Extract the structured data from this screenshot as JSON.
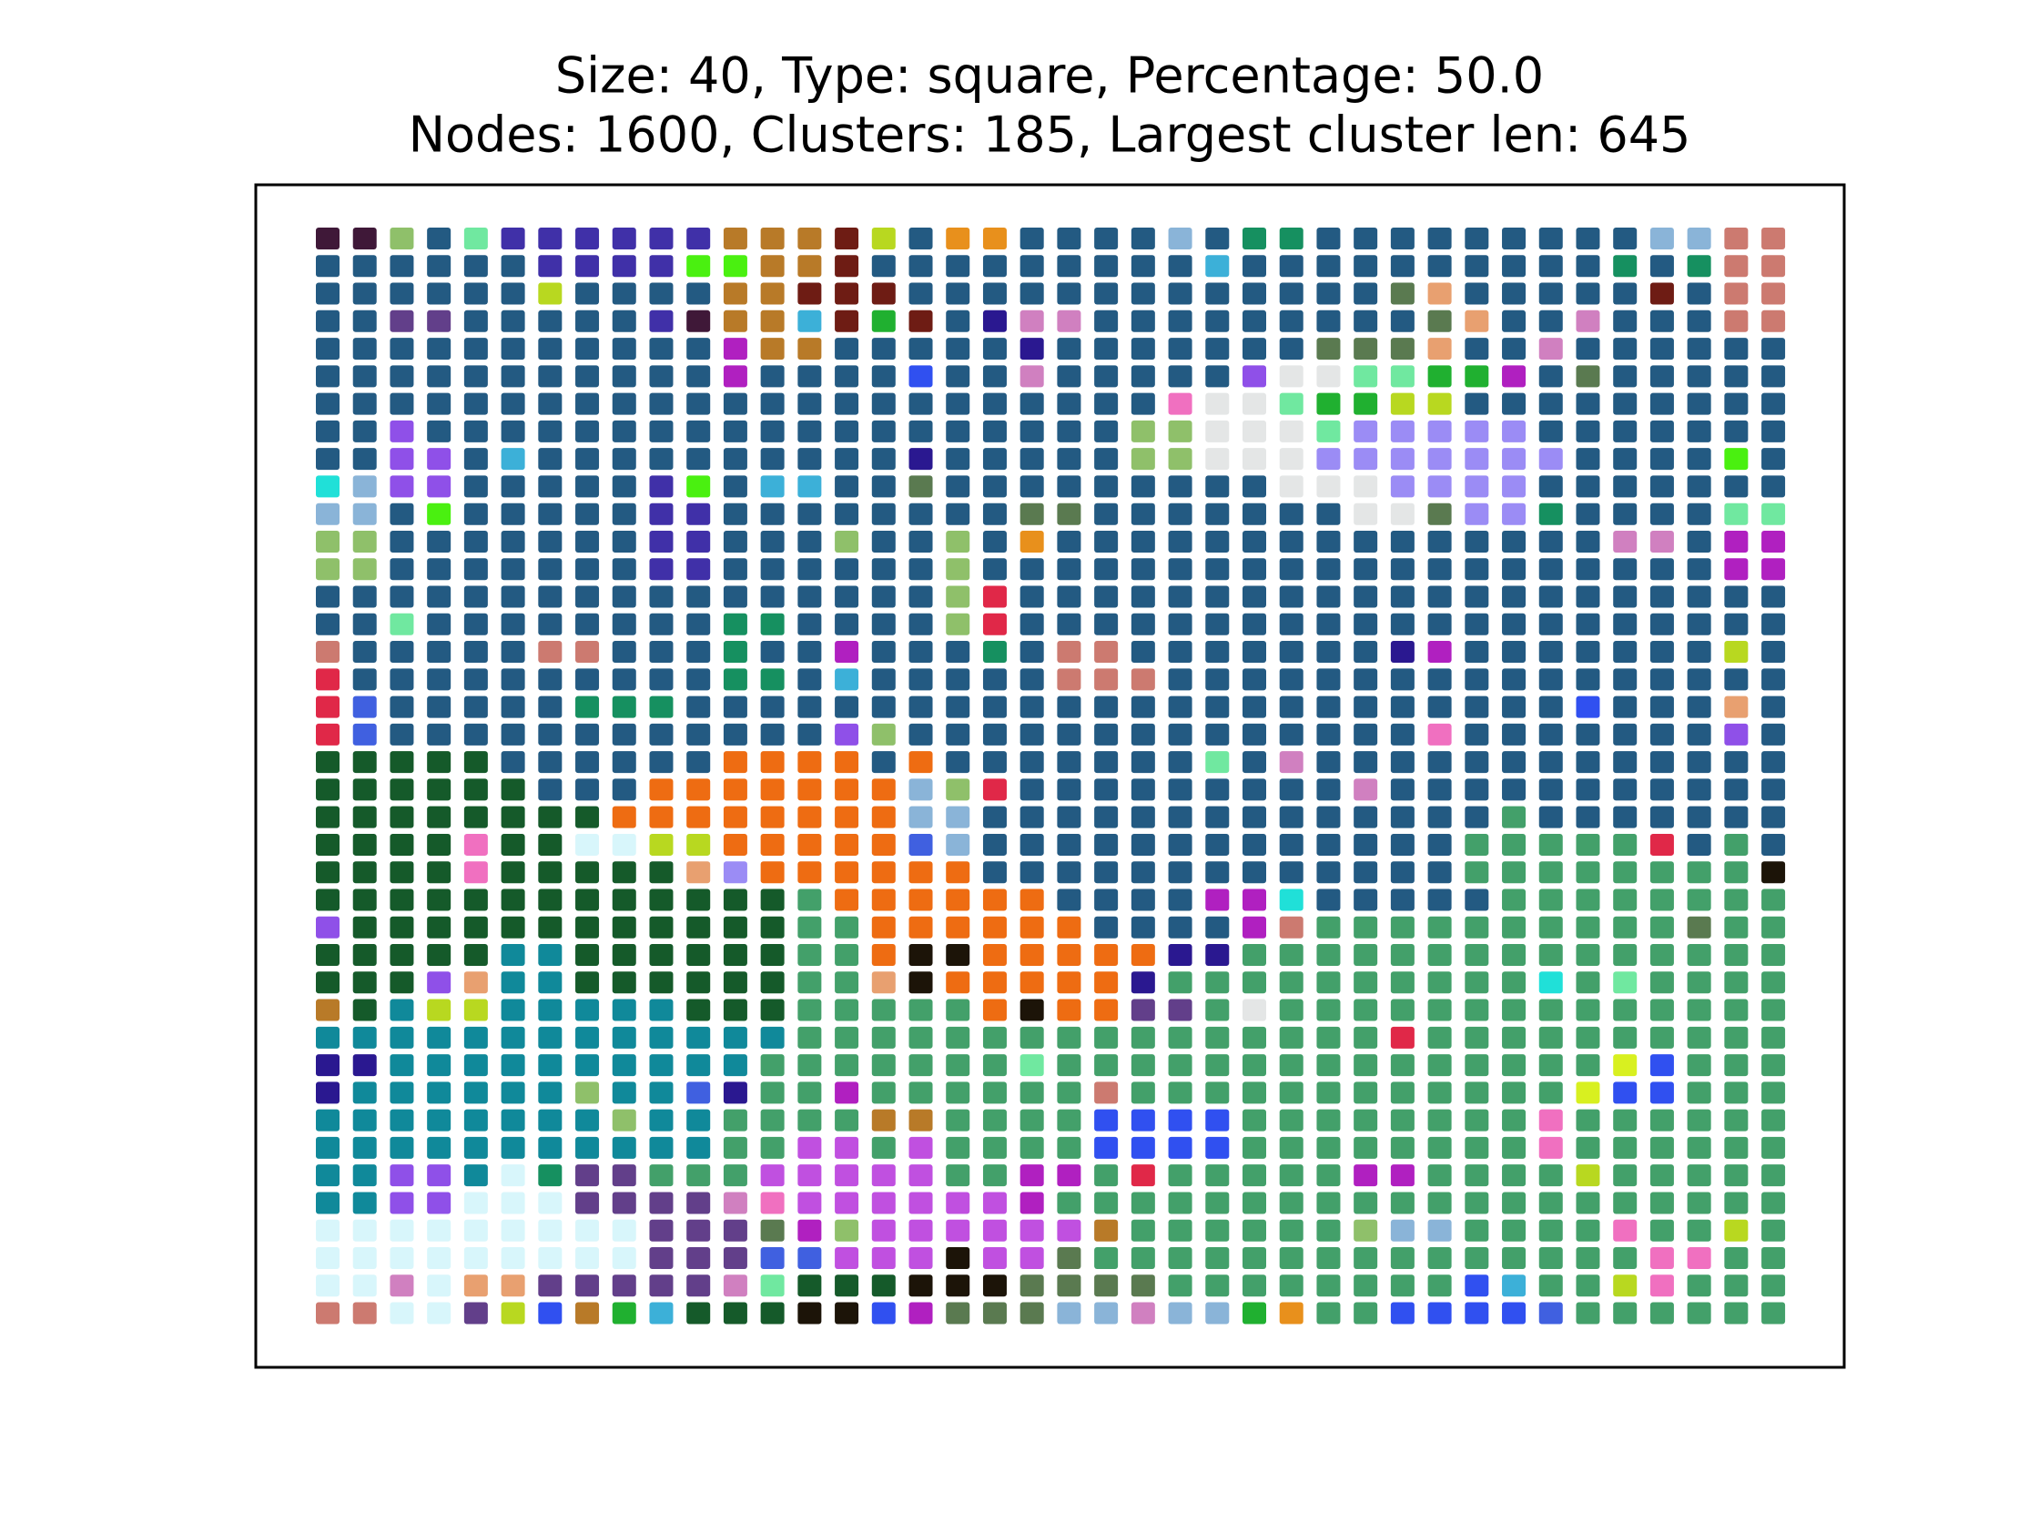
{
  "chart_data": {
    "type": "grid",
    "title": "Size: 40, Type: square, Percentage: 50.0",
    "subtitle": "Nodes: 1600, Clusters: 185, Largest cluster len: 645",
    "palette": {
      "B": "#235a82",
      "G": "#43a06a",
      "D": "#155a2a",
      "O": "#ee6c12",
      "T": "#10899a",
      "L": "#d8f6fb",
      "P": "#c050e0",
      "W": "#e4e6e6",
      "V": "#9b8cf5",
      "N": "#623f8a",
      "K": "#b87a28",
      "S": "#cc7a70",
      "a": "#3f1838",
      "b": "#8fc06a",
      "c": "#70e8a0",
      "d": "#4030a8",
      "e": "#e8901c",
      "f": "#8ab4d8",
      "g": "#169060",
      "h": "#6e1c14",
      "i": "#4af010",
      "j": "#b8d820",
      "k": "#3cb0d8",
      "l": "#20b030",
      "m": "#d080c0",
      "n": "#2a1890",
      "p": "#8f50e8",
      "q": "#20e0d8",
      "r": "#e02848",
      "s": "#4060e0",
      "t": "#5a7a50",
      "u": "#e8a070",
      "v": "#b020c0",
      "w": "#f070c0",
      "x": "#1c1408",
      "y": "#d8f020",
      "z": "#3050f0"
    },
    "rows": [
      "aabBcddddddKKKhjBeeBBBBfBggBBBBBBBBBffSS",
      "BBBBBBddddiiKKhBBBBBBBBBkBBBBBBBBBBgBgSS",
      "BBBBBBjBBBBKKhhhBBBBBBBBBBBBBtuBBBBBhBSS",
      "BBNNBBBBBdaKKkhlhBnmmBBBBBBBBBtuBBmBBBSS",
      "BBBBBBBBBBBvKKBBBBBnBBBBBBBtttuBBmBBBBBB",
      "BBBBBBBBBBBvBBBBzBBmBBBBBpWWccllvBtBBBBB",
      "BBBBBBBBBBBBBBBBBBBBBBBwWWclljjBBBBBBBBB",
      "BBpBBBBBBBBBBBBBBBBBBBbbWWWcVVVVVBBBBBBB",
      "BBppBkBBBBBBBBBBnBBBBBbbWWWVVVVVVVBBBBiB",
      "qfppBBBBBdiBkkBBtBBBBBBBBBWWWVVVVBBBBBBB",
      "ffBiBBBBBddBBBBBBBBttBBBBBBBWWtVVgBBBBcc",
      "bbBBBBBBBddBBBbBBbBeBBBBBBBBBBBBBBBmmBvv",
      "bbBBBBBBBddBBBBBBbBBBBBBBBBBBBBBBBBBBBvv",
      "BBBBBBBBBBBBBBBBBbrBBBBBBBBBBBBBBBBBBBBB",
      "BBcBBBBBBBBggBBBBbrBBBBBBBBBBBBBBBBBBBBB",
      "SBBBBBSSBBBgBBvBBBgBSSBBBBBBBnvBBBBBBBjB",
      "rBBBBBBBBBBggBkBBBBBSSSBBBBBBBBBBBBBBBBB",
      "rsBBBBBgggBBBBBBBBBBBBBBBBBBBBBBBBzBBBuB",
      "rsBBBBBBBBBBBBpbBBBBBBBBBBBBBBwBBBBBBBpB",
      "DDDDDBBBBBBOOOOBOBBBBBBBcBmBBBBBBBBBBBBB",
      "DDDDDDBBBOOOOOOOfbrBBBBBBBBBmBBBBBBBBBBB",
      "DDDDDDDDOOOOOOOOffBBBBBBBBBBBBBBGBBBBBBB",
      "DDDDwDDLLjjOOOOOsfBBBBBBBBBBBBBGGGGGrBGB",
      "DDDDwDDDDDuVOOOOOOBBBBBBBBBBBBBGGGGGGGGx",
      "DDDDDDDDDDDDDGOOOOOOBBBBvvqBBBBBGGGGGGGG",
      "pDDDDDDDDDDDDGGOOOOOOBBBBvSGGGGGGGGGGtGG",
      "DDDDDTTDDDDDDGGOxxOOOOOnnGGGGGGGGGGGGGGG",
      "DDDpuTTDDDDDDGGuxOOOOOnGGGGGGGGGGqGcGGGG",
      "KDTjjTTTTTDDDGGGGGOxOONNGWGGGGGGGGGGGGGG",
      "TTTTTTTTTTTTTGGGGGGGGGGGGGGGGrGGGGGGGGGG",
      "nnTTTTTTTTTTGGGGGGGcGGGGGGGGGGGGGGGyzGGG",
      "nTTTTTTbTTsnGGvGGGGGGSGGGGGGGGGGGGyzzGGG",
      "TTTTTTTTbTTGGGGKKGGGGzzzzGGGGGGGGwGGGGGG",
      "TTTTTTTTTTTGGPPGPGGGGzzzzGGGGGGGGwGGGGGG",
      "TTppTLgNNGGGPPPPPGGvvGrGGGGGvvGGGGjGGGGG",
      "TTppLLLNNNNmwPPPPPPvGGGGGGGGGGGGGGGGGGGG",
      "LLLLLLLLLNNNtvbPPPPPPKGGGGGGbffGGGGwGGjG",
      "LLLLLLLLLNNNssPPPxPPtGGGGGGGGGGGGGGGwwGG",
      "LLmLuuNNNNNmcDDDxxxttttGGGGGGGGzkGGjwGGG",
      "SSLLNjzKlkDDDxxzvtttffmffleGGzzzzsGGGGGG"
    ]
  }
}
